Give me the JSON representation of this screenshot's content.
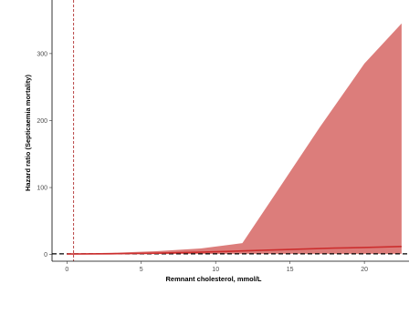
{
  "chart_data": {
    "type": "area",
    "title": "",
    "xlabel": "Remnant cholesterol, mmol/L",
    "ylabel": "Hazard ratio (Septicaemia mortality)",
    "xlim": [
      -1,
      23
    ],
    "ylim": [
      -10,
      380
    ],
    "x_ticks": [
      0,
      5,
      10,
      15,
      20
    ],
    "y_ticks": [
      0,
      100,
      200,
      300
    ],
    "grid": false,
    "legend": "none",
    "reference_line_y": 1,
    "reference_line_x": 0.45,
    "series": [
      {
        "kind": "ci_band",
        "x": [
          0,
          3,
          6,
          9,
          11.8,
          14,
          17,
          20,
          22.5
        ],
        "lower": [
          0.5,
          0.6,
          0.8,
          0.9,
          1.0,
          1.0,
          1.0,
          1.0,
          1.0
        ],
        "upper": [
          1.2,
          2.5,
          5,
          9,
          17,
          90,
          190,
          285,
          345
        ]
      },
      {
        "kind": "hazard_ratio",
        "x": [
          0,
          3,
          6,
          9,
          12,
          15,
          18,
          20,
          22.5
        ],
        "y": [
          0.8,
          1.2,
          2,
          3.5,
          5.5,
          7.5,
          9.5,
          10.5,
          12
        ]
      }
    ],
    "colors": {
      "band": "#dc7d7b",
      "line": "#cc2e2e",
      "reference_vertical": "#b03030",
      "reference_horizontal": "#000000"
    }
  }
}
